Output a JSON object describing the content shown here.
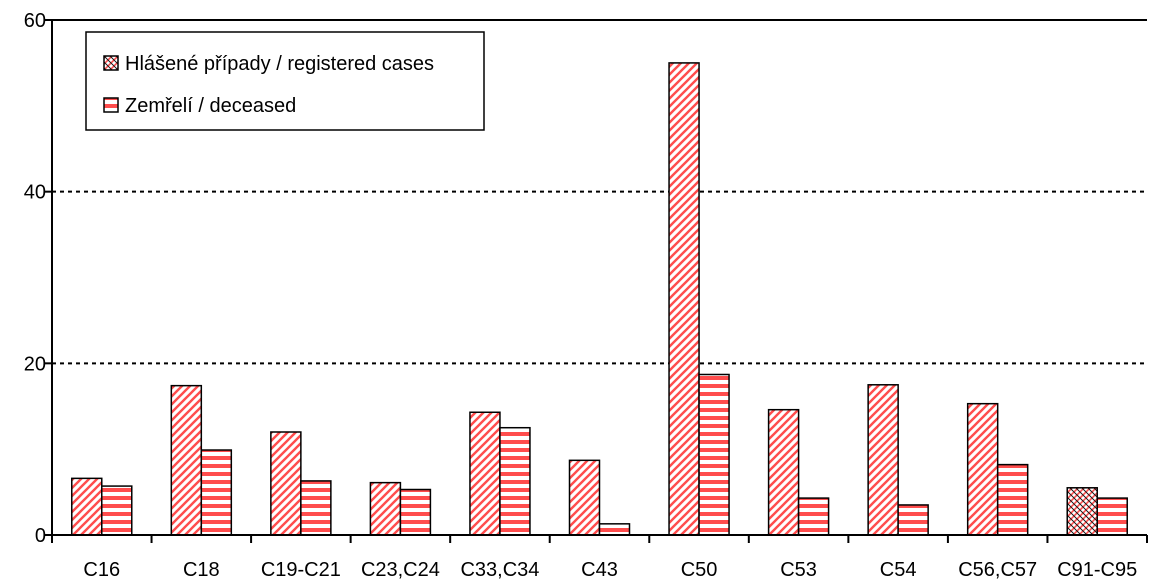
{
  "chart_data": {
    "type": "bar",
    "categories": [
      "C16",
      "C18",
      "C19-C21",
      "C23,C24",
      "C33,C34",
      "C43",
      "C50",
      "C53",
      "C54",
      "C56,C57",
      "C91-C95"
    ],
    "series": [
      {
        "name": "Hlášené případy / registered cases",
        "values": [
          6.6,
          17.4,
          12.0,
          6.1,
          14.3,
          8.7,
          55.0,
          14.6,
          17.5,
          15.3,
          5.5
        ],
        "color": "#ff4d4d",
        "pattern": "diagonal"
      },
      {
        "name": "Zemřelí / deceased",
        "values": [
          5.7,
          9.9,
          6.3,
          5.3,
          12.5,
          1.3,
          18.7,
          4.3,
          3.5,
          8.2,
          4.3
        ],
        "color": "#ff4d4d",
        "pattern": "horizontal"
      }
    ],
    "highlight": {
      "category_index": 10,
      "series_index": 0,
      "pattern": "crosshatch"
    },
    "y_ticks": [
      "0",
      "20",
      "40",
      "60"
    ],
    "ylim": [
      0,
      60
    ],
    "title": "",
    "xlabel": "",
    "ylabel": "",
    "grid": "horizontal dotted",
    "legend_position": "top-left"
  }
}
